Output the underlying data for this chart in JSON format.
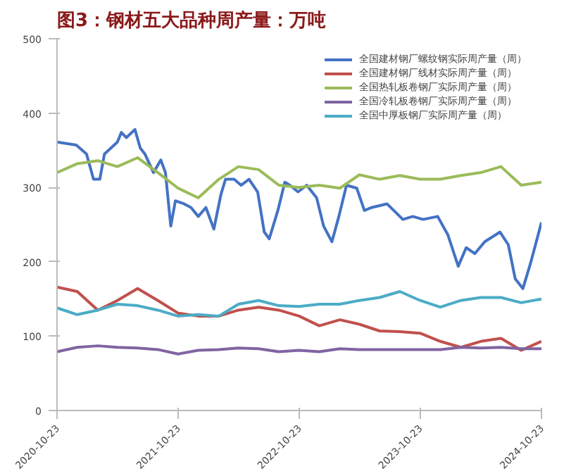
{
  "chart_data": {
    "type": "line",
    "title": "图3：钢材五大品种周产量：万吨",
    "ylim": [
      0,
      500
    ],
    "yticks": [
      0,
      100,
      200,
      300,
      400,
      500
    ],
    "xlim": [
      "2020-10-23",
      "2024-10-23"
    ],
    "xticks": [
      "2020-10-23",
      "2021-10-23",
      "2022-10-23",
      "2023-10-23",
      "2024-10-23"
    ],
    "grid": false,
    "legend": "top right",
    "line_style": "solid",
    "marker": "none",
    "x": [
      "2020-10-23",
      "2020-12-23",
      "2021-02-23",
      "2021-04-23",
      "2021-06-23",
      "2021-08-23",
      "2021-10-23",
      "2021-12-23",
      "2022-02-23",
      "2022-04-23",
      "2022-06-23",
      "2022-08-23",
      "2022-10-23",
      "2022-12-23",
      "2023-02-23",
      "2023-04-23",
      "2023-06-23",
      "2023-08-23",
      "2023-10-23",
      "2023-12-23",
      "2024-02-23",
      "2024-04-23",
      "2024-06-23",
      "2024-08-23",
      "2024-10-23"
    ],
    "series": [
      {
        "name": "全国建材钢厂螺纹钢实际周产量（周）",
        "color": "#4472c4",
        "x": [
          "2020-10-23",
          "2020-12-20",
          "2021-01-20",
          "2021-02-10",
          "2021-03-01",
          "2021-03-15",
          "2021-04-23",
          "2021-05-05",
          "2021-05-20",
          "2021-06-15",
          "2021-07-01",
          "2021-07-15",
          "2021-08-10",
          "2021-09-01",
          "2021-09-15",
          "2021-10-01",
          "2021-10-15",
          "2021-11-10",
          "2021-12-01",
          "2021-12-23",
          "2022-01-15",
          "2022-02-08",
          "2022-03-01",
          "2022-03-15",
          "2022-04-10",
          "2022-05-01",
          "2022-05-25",
          "2022-06-20",
          "2022-07-10",
          "2022-07-25",
          "2022-08-20",
          "2022-09-10",
          "2022-09-25",
          "2022-10-20",
          "2022-11-15",
          "2022-12-15",
          "2023-01-05",
          "2023-01-30",
          "2023-02-20",
          "2023-03-15",
          "2023-04-15",
          "2023-05-08",
          "2023-05-30",
          "2023-07-15",
          "2023-09-01",
          "2023-10-01",
          "2023-11-01",
          "2023-12-15",
          "2024-01-15",
          "2024-02-15",
          "2024-03-10",
          "2024-04-05",
          "2024-05-05",
          "2024-06-20",
          "2024-07-15",
          "2024-08-05",
          "2024-08-28",
          "2024-09-20",
          "2024-10-23"
        ],
        "values": [
          361,
          357,
          345,
          311,
          311,
          345,
          361,
          374,
          367,
          378,
          353,
          345,
          320,
          337,
          320,
          248,
          282,
          278,
          273,
          261,
          273,
          244,
          290,
          311,
          311,
          303,
          311,
          294,
          240,
          231,
          269,
          307,
          303,
          294,
          303,
          286,
          248,
          227,
          261,
          303,
          299,
          269,
          273,
          278,
          257,
          261,
          257,
          261,
          236,
          194,
          219,
          211,
          227,
          240,
          223,
          177,
          164,
          198,
          253
        ]
      },
      {
        "name": "全国建材钢厂线材实际周产量（周）",
        "color": "#c0504d",
        "values": [
          166,
          160,
          135,
          148,
          164,
          148,
          131,
          127,
          127,
          135,
          139,
          135,
          127,
          114,
          122,
          116,
          107,
          106,
          104,
          93,
          85,
          93,
          97,
          81,
          93
        ]
      },
      {
        "name": "全国热轧板卷钢厂实际周产量（周）",
        "color": "#9bbb59",
        "values": [
          320,
          332,
          336,
          328,
          340,
          320,
          299,
          286,
          311,
          328,
          324,
          303,
          300,
          303,
          299,
          317,
          311,
          316,
          311,
          311,
          316,
          320,
          328,
          303,
          307
        ]
      },
      {
        "name": "全国冷轧板卷钢厂实际周产量（周）",
        "color": "#8064a2",
        "values": [
          79,
          85,
          87,
          85,
          84,
          82,
          76,
          81,
          82,
          84,
          83,
          79,
          81,
          79,
          83,
          82,
          82,
          82,
          82,
          82,
          85,
          84,
          85,
          83,
          83
        ]
      },
      {
        "name": "全国中厚板钢厂实际周产量（周）",
        "color": "#4bacc6",
        "values": [
          138,
          129,
          135,
          143,
          141,
          135,
          127,
          129,
          127,
          143,
          148,
          141,
          140,
          143,
          143,
          148,
          152,
          160,
          148,
          139,
          148,
          152,
          152,
          145,
          150
        ]
      }
    ]
  }
}
